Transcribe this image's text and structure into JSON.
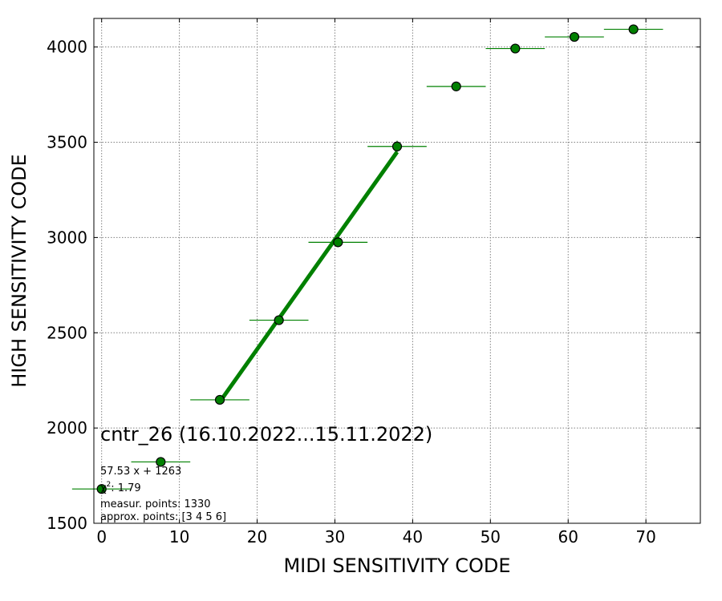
{
  "chart_data": {
    "type": "scatter",
    "xlabel": "MIDI SENSITIVITY CODE",
    "ylabel": "HIGH SENSITIVITY CODE",
    "xlim": [
      -1,
      77
    ],
    "ylim": [
      1500,
      4150
    ],
    "x_ticks": [
      0,
      10,
      20,
      30,
      40,
      50,
      60,
      70
    ],
    "y_ticks": [
      1500,
      2000,
      2500,
      3000,
      3500,
      4000
    ],
    "grid": true,
    "marker_color": "#008000",
    "marker_edge": "#000000",
    "fit_color": "#008000",
    "points": [
      {
        "x": 0.0,
        "y": 1680,
        "xerr": 3.8,
        "yerr": 10
      },
      {
        "x": 7.6,
        "y": 1822,
        "xerr": 3.8,
        "yerr": 10
      },
      {
        "x": 15.2,
        "y": 2148,
        "xerr": 3.8,
        "yerr": 12
      },
      {
        "x": 22.8,
        "y": 2566,
        "xerr": 3.8,
        "yerr": 15
      },
      {
        "x": 30.4,
        "y": 2975,
        "xerr": 3.8,
        "yerr": 25
      },
      {
        "x": 38.0,
        "y": 3478,
        "xerr": 3.8,
        "yerr": 30
      },
      {
        "x": 45.6,
        "y": 3793,
        "xerr": 3.8,
        "yerr": 25
      },
      {
        "x": 53.2,
        "y": 3992,
        "xerr": 3.8,
        "yerr": 15
      },
      {
        "x": 60.8,
        "y": 4053,
        "xerr": 3.8,
        "yerr": 10
      },
      {
        "x": 68.4,
        "y": 4093,
        "xerr": 3.8,
        "yerr": 8
      }
    ],
    "fit": {
      "slope": 57.53,
      "intercept": 1263,
      "x_range": [
        15.2,
        38.0
      ]
    },
    "annotations": {
      "title": "cntr_26 (16.10.2022...15.11.2022)",
      "equation": "57.53 x + 1263",
      "chi2_symbol": "χ",
      "chi2_sup": "2",
      "chi2_value": ": 1.79",
      "measur": "measur. points: 1330",
      "approx": "approx. points: [3 4 5 6]"
    }
  }
}
